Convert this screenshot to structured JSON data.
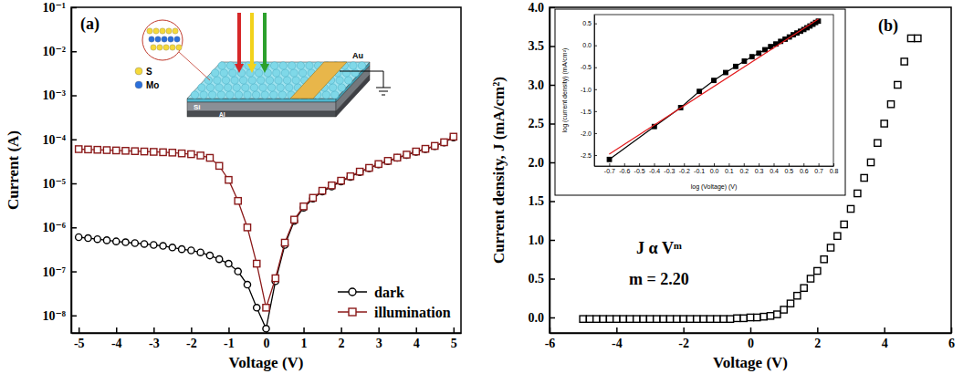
{
  "chart_data": [
    {
      "type": "line",
      "title": "(a)",
      "x_label": "Voltage (V)",
      "y_label": "Current (A)",
      "log": "y",
      "legend": "lower right",
      "x": [
        -5,
        -4.75,
        -4.5,
        -4.25,
        -4,
        -3.75,
        -3.5,
        -3.25,
        -3,
        -2.75,
        -2.5,
        -2.25,
        -2,
        -1.75,
        -1.5,
        -1.25,
        -1,
        -0.75,
        -0.5,
        -0.25,
        0,
        0.25,
        0.5,
        0.75,
        1,
        1.25,
        1.5,
        1.75,
        2,
        2.25,
        2.5,
        2.75,
        3,
        3.25,
        3.5,
        3.75,
        4,
        4.25,
        4.5,
        4.75,
        5
      ],
      "series": [
        {
          "name": "dark",
          "color": "#000000",
          "marker": "open-circle",
          "line_style": "solid",
          "values": [
            6e-07,
            5.7e-07,
            5.4e-07,
            5.1e-07,
            4.8e-07,
            4.6e-07,
            4.4e-07,
            4.2e-07,
            4e-07,
            3.8e-07,
            3.5e-07,
            3.2e-07,
            3e-07,
            2.7e-07,
            2.3e-07,
            1.9e-07,
            1.5e-07,
            1e-07,
            5e-08,
            1.5e-08,
            5e-09,
            6e-08,
            4e-07,
            1.4e-06,
            2.8e-06,
            4.5e-06,
            6.5e-06,
            8.5e-06,
            1.1e-05,
            1.4e-05,
            1.8e-05,
            2.2e-05,
            2.7e-05,
            3.2e-05,
            3.8e-05,
            4.4e-05,
            5.2e-05,
            6e-05,
            7e-05,
            8.5e-05,
            0.00011
          ]
        },
        {
          "name": "illumination",
          "color": "#8b1a1a",
          "marker": "open-square",
          "line_style": "solid",
          "values": [
            6e-05,
            5.9e-05,
            5.8e-05,
            5.7e-05,
            5.6e-05,
            5.5e-05,
            5.4e-05,
            5.3e-05,
            5.2e-05,
            5.1e-05,
            5e-05,
            4.8e-05,
            4.6e-05,
            4.3e-05,
            3.8e-05,
            2.5e-05,
            1.2e-05,
            4e-06,
            1e-06,
            1.5e-07,
            1.5e-08,
            7e-08,
            4.5e-07,
            1.5e-06,
            3e-06,
            4.7e-06,
            6.8e-06,
            9e-06,
            1.15e-05,
            1.45e-05,
            1.85e-05,
            2.25e-05,
            2.75e-05,
            3.25e-05,
            3.85e-05,
            4.5e-05,
            5.3e-05,
            6.1e-05,
            7.1e-05,
            8.6e-05,
            0.000115
          ]
        }
      ],
      "xlim": [
        -5.2,
        5.2
      ],
      "xticks": [
        -5,
        -4,
        -3,
        -2,
        -1,
        0,
        1,
        2,
        3,
        4,
        5
      ],
      "ylim": [
        4e-09,
        0.1
      ],
      "yticks": [
        {
          "value": 1e-08,
          "label": "10⁻⁸"
        },
        {
          "value": 1e-07,
          "label": "10⁻⁷"
        },
        {
          "value": 1e-06,
          "label": "10⁻⁶"
        },
        {
          "value": 1e-05,
          "label": "10⁻⁵"
        },
        {
          "value": 0.0001,
          "label": "10⁻⁴"
        },
        {
          "value": 0.001,
          "label": "10⁻³"
        },
        {
          "value": 0.01,
          "label": "10⁻²"
        },
        {
          "value": 0.1,
          "label": "10⁻¹"
        }
      ],
      "schematic_labels": {
        "sulfur": "S",
        "molybdenum": "Mo",
        "electrode": "Au",
        "substrate": "Si",
        "back_contact": "Al"
      }
    },
    {
      "type": "scatter",
      "title": "(b)",
      "x_label": "Voltage (V)",
      "y_label": "Current density, J (mA/cm²)",
      "annotations": [
        "J α Vᵐ",
        "m = 2.20"
      ],
      "x": [
        -5,
        -4.8,
        -4.6,
        -4.4,
        -4.2,
        -4,
        -3.8,
        -3.6,
        -3.4,
        -3.2,
        -3,
        -2.8,
        -2.6,
        -2.4,
        -2.2,
        -2,
        -1.8,
        -1.6,
        -1.4,
        -1.2,
        -1,
        -0.8,
        -0.6,
        -0.4,
        -0.2,
        0,
        0.2,
        0.4,
        0.6,
        0.8,
        1,
        1.2,
        1.4,
        1.6,
        1.8,
        2,
        2.2,
        2.4,
        2.6,
        2.8,
        3,
        3.2,
        3.4,
        3.6,
        3.8,
        4,
        4.2,
        4.4,
        4.6,
        4.8,
        5
      ],
      "series": [
        {
          "color": "#000000",
          "marker": "open-square",
          "line_style": "none",
          "values": [
            -0.02,
            -0.02,
            -0.02,
            -0.02,
            -0.02,
            -0.02,
            -0.02,
            -0.02,
            -0.02,
            -0.02,
            -0.02,
            -0.02,
            -0.02,
            -0.02,
            -0.02,
            -0.02,
            -0.02,
            -0.02,
            -0.02,
            -0.02,
            -0.02,
            -0.02,
            -0.02,
            -0.01,
            -0.01,
            0,
            0,
            0.01,
            0.02,
            0.04,
            0.1,
            0.18,
            0.28,
            0.38,
            0.5,
            0.6,
            0.75,
            0.9,
            1.05,
            1.2,
            1.4,
            1.6,
            1.8,
            2.0,
            2.25,
            2.5,
            2.75,
            3.0,
            3.3,
            3.6,
            3.6
          ]
        }
      ],
      "xlim": [
        -6,
        6
      ],
      "xticks": [
        -6,
        -4,
        -2,
        0,
        2,
        4,
        6
      ],
      "ylim": [
        -0.2,
        4.0
      ],
      "yticks": [
        {
          "value": 0,
          "label": "0.0"
        },
        0.5,
        {
          "value": 1,
          "label": "1.0"
        },
        1.5,
        {
          "value": 2,
          "label": "2.0"
        },
        2.5,
        {
          "value": 3,
          "label": "3.0"
        },
        3.5,
        {
          "value": 4,
          "label": "4.0"
        }
      ]
    },
    {
      "type": "line",
      "x_label": "log (Voltage) (V)",
      "y_label": "log (current density) (mA/cm²)",
      "series": [
        {
          "color": "#000000",
          "marker": "filled-square",
          "line_style": "solid",
          "x": [
            -0.699,
            -0.398,
            -0.222,
            -0.097,
            0,
            0.079,
            0.146,
            0.204,
            0.255,
            0.301,
            0.342,
            0.38,
            0.415,
            0.447,
            0.477,
            0.505,
            0.531,
            0.556,
            0.58,
            0.602,
            0.623,
            0.643,
            0.663,
            0.681,
            0.699
          ],
          "values": [
            -2.6,
            -1.85,
            -1.42,
            -1.05,
            -0.8,
            -0.62,
            -0.48,
            -0.36,
            -0.26,
            -0.18,
            -0.1,
            -0.03,
            0.03,
            0.09,
            0.14,
            0.19,
            0.24,
            0.28,
            0.32,
            0.36,
            0.4,
            0.44,
            0.48,
            0.52,
            0.55
          ]
        },
        {
          "color": "#e31a1c",
          "line_style": "solid",
          "x": [
            -0.7,
            0.7
          ],
          "values": [
            -2.48,
            0.6
          ]
        }
      ],
      "xlim": [
        -0.8,
        0.8
      ],
      "xticks": [
        -0.7,
        -0.6,
        -0.5,
        -0.4,
        -0.3,
        -0.2,
        -0.1,
        {
          "value": 0,
          "label": "0.0"
        },
        0.1,
        0.2,
        0.3,
        0.4,
        0.5,
        0.6,
        0.7,
        0.8
      ],
      "ylim": [
        -2.75,
        0.7
      ],
      "yticks": [
        -2.5,
        {
          "value": -2,
          "label": "-2.0"
        },
        -1.5,
        {
          "value": -1,
          "label": "-1.0"
        },
        -0.5,
        {
          "value": 0,
          "label": "0.0"
        },
        0.5
      ]
    }
  ]
}
